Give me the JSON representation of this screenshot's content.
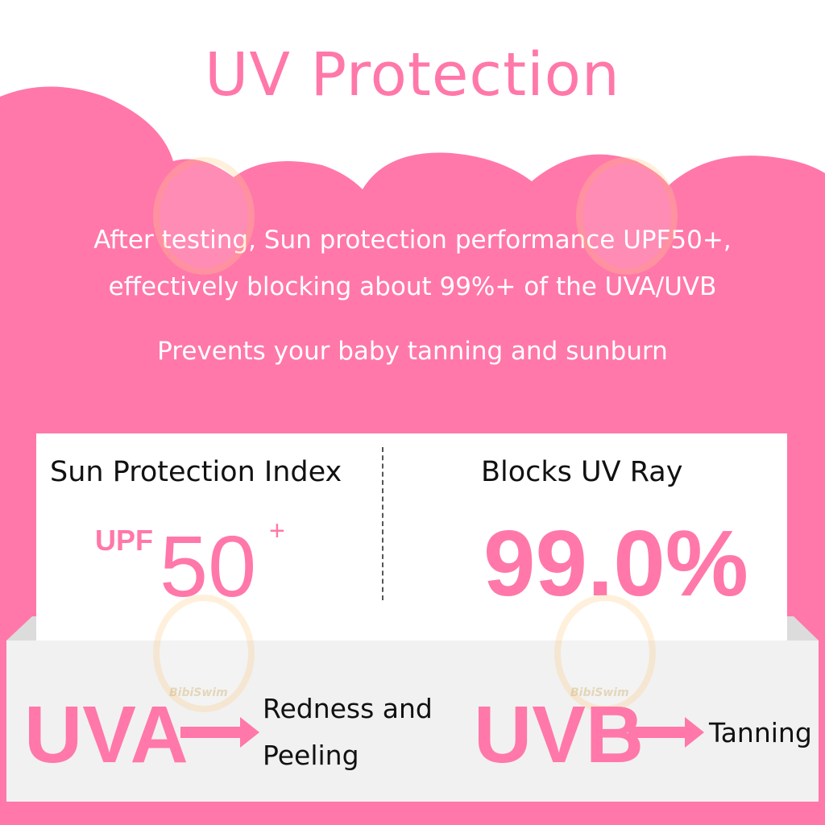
{
  "title": "UV Protection",
  "intro": {
    "line1": "After testing, Sun protection performance UPF50+,",
    "line2": "effectively blocking about 99%+ of the UVA/UVB",
    "line3": "Prevents your baby tanning and sunburn"
  },
  "stats": {
    "left_label": "Sun Protection Index",
    "upf_prefix": "UPF",
    "upf_value": "50",
    "upf_suffix": "+",
    "right_label": "Blocks UV Ray",
    "block_value": "99.0%"
  },
  "effects": [
    {
      "ray": "UVA",
      "line1": "Redness and",
      "line2": "Peeling"
    },
    {
      "ray": "UVB",
      "line1": "Tanning"
    }
  ],
  "watermark": "BibiSwim",
  "colors": {
    "accent": "#ff78a9",
    "tray": "#f1f1f1"
  }
}
